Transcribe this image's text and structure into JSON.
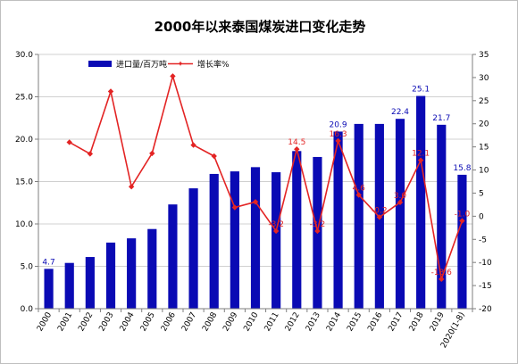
{
  "chart_data": {
    "type": "bar",
    "title": "2000年以来泰国煤炭进口变化走势",
    "categories": [
      "2000",
      "2001",
      "2002",
      "2003",
      "2004",
      "2005",
      "2006",
      "2007",
      "2008",
      "2009",
      "2010",
      "2011",
      "2012",
      "2013",
      "2014",
      "2015",
      "2016",
      "2017",
      "2018",
      "2019",
      "2020(1-8)"
    ],
    "series": [
      {
        "name": "进口量/百万吨",
        "type": "bar",
        "axis": "left",
        "color": "#0a0ab4",
        "values": [
          4.7,
          5.4,
          6.1,
          7.8,
          8.3,
          9.4,
          12.3,
          14.2,
          15.9,
          16.2,
          16.7,
          16.1,
          18.6,
          17.9,
          20.9,
          21.8,
          21.8,
          22.4,
          25.1,
          21.7,
          15.8
        ]
      },
      {
        "name": "增长率%",
        "type": "line",
        "axis": "right",
        "color": "#e32424",
        "values": [
          null,
          16.0,
          13.5,
          27.0,
          6.4,
          13.6,
          30.3,
          15.4,
          13.0,
          1.9,
          3.1,
          -3.2,
          14.5,
          -3.2,
          16.3,
          4.6,
          -0.2,
          3.0,
          12.1,
          -13.6,
          -1.0
        ]
      }
    ],
    "bar_labels": [
      {
        "index": 0,
        "text": "4.7"
      },
      {
        "index": 14,
        "text": "20.9"
      },
      {
        "index": 17,
        "text": "22.4"
      },
      {
        "index": 18,
        "text": "25.1"
      },
      {
        "index": 19,
        "text": "21.7"
      },
      {
        "index": 20,
        "text": "15.8"
      }
    ],
    "growth_labels": [
      {
        "index": 11,
        "text": "-3.2"
      },
      {
        "index": 12,
        "text": "14.5"
      },
      {
        "index": 13,
        "text": "-3.2"
      },
      {
        "index": 14,
        "text": "16.3"
      },
      {
        "index": 15,
        "text": "4.6"
      },
      {
        "index": 16,
        "text": "-0.2"
      },
      {
        "index": 17,
        "text": "3.0"
      },
      {
        "index": 18,
        "text": "12.1"
      },
      {
        "index": 19,
        "text": "-13.6"
      },
      {
        "index": 20,
        "text": "-1.0"
      }
    ],
    "left_axis": {
      "min": 0,
      "max": 30,
      "step": 5,
      "ticks": [
        "0.0",
        "5.0",
        "10.0",
        "15.0",
        "20.0",
        "25.0",
        "30.0"
      ]
    },
    "right_axis": {
      "min": -20,
      "max": 35,
      "step": 5,
      "ticks": [
        "-20",
        "-15",
        "-10",
        "-5",
        "0",
        "5",
        "10",
        "15",
        "20",
        "25",
        "30",
        "35"
      ]
    },
    "grid": true,
    "legend_position": "top-left"
  }
}
